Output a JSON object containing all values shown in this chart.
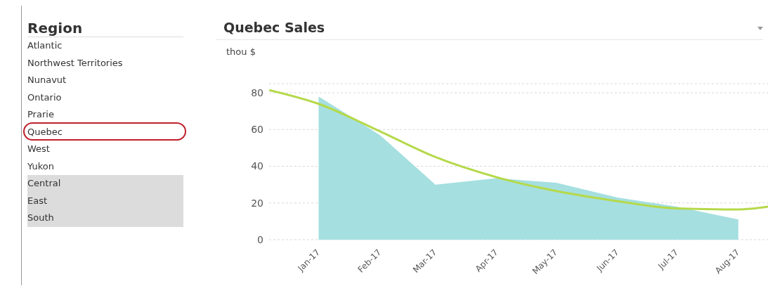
{
  "chart_data": [
    {
      "type": "other",
      "title": "Region",
      "annotations": [
        "Atlantic",
        "Northwest Territories",
        "Nunavut",
        "Ontario",
        "Prarie",
        "Quebec",
        "West",
        "Yukon",
        "Central",
        "East",
        "South"
      ]
    },
    {
      "type": "area",
      "title": "Quebec Sales",
      "ylabel": "thou $",
      "x": [
        "2017-01",
        "2017-02",
        "2017-03",
        "2017-04",
        "2017-05",
        "2017-06",
        "2017-07",
        "2017-08"
      ],
      "series": [
        {
          "type": "area",
          "color": "#a5dfe0",
          "values": [
            78,
            57,
            30,
            33.5,
            31,
            23,
            18,
            11
          ]
        },
        {
          "type": "line",
          "color": "#b5d94a",
          "x": [
            "2016-12-07",
            "2017-01",
            "2017-02",
            "2017-03",
            "2017-04",
            "2017-05",
            "2017-06",
            "2017-07",
            "2017-08",
            "2017-08-16"
          ],
          "values": [
            81.5,
            74,
            59,
            45,
            34,
            26.5,
            21,
            17,
            16.5,
            18
          ]
        }
      ],
      "xlim": [
        "2016-12-07",
        "2017-08-16"
      ],
      "xticks": [
        {
          "value": "2017-01",
          "label": "Jan-17"
        },
        {
          "value": "2017-02",
          "label": "Feb-17"
        },
        {
          "value": "2017-03",
          "label": "Mar-17"
        },
        {
          "value": "2017-04",
          "label": "Apr-17"
        },
        {
          "value": "2017-05",
          "label": "May-17"
        },
        {
          "value": "2017-06",
          "label": "Jun-17"
        },
        {
          "value": "2017-07",
          "label": "Jul-17"
        },
        {
          "value": "2017-08",
          "label": "Aug-17"
        }
      ],
      "ylim": [
        0,
        85
      ],
      "yticks": [
        0,
        20,
        40,
        60,
        80
      ],
      "grid": "y"
    }
  ]
}
